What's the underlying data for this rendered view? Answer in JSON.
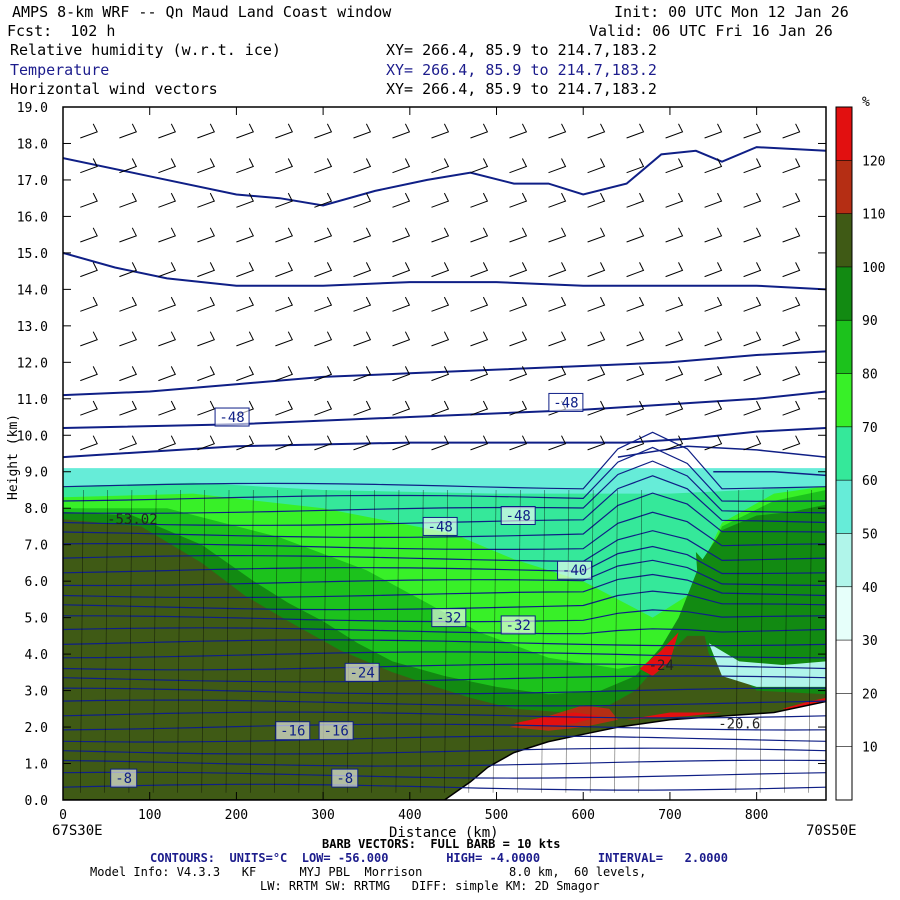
{
  "header": {
    "title_left": "AMPS 8-km WRF -- Qn Maud Land Coast window",
    "init": "Init: 00 UTC Mon 12 Jan 26",
    "fcst": "Fcst:  102 h",
    "valid": "Valid: 06 UTC Fri 16 Jan 26",
    "fields": [
      {
        "name": "Relative humidity (w.r.t. ice)",
        "xy": "XY= 266.4, 85.9 to 214.7,183.2",
        "color": "#000000"
      },
      {
        "name": "Temperature",
        "xy": "XY= 266.4, 85.9 to 214.7,183.2",
        "color": "#1c1c8c"
      },
      {
        "name": "Horizontal wind vectors",
        "xy": "XY= 266.4, 85.9 to 214.7,183.2",
        "color": "#000000"
      }
    ]
  },
  "chart_data": {
    "type": "cross-section",
    "xlabel": "Distance (km)",
    "ylabel": "Height (km)",
    "xlim": [
      0,
      880
    ],
    "ylim": [
      0,
      19
    ],
    "x_ticks": [
      0,
      100,
      200,
      300,
      400,
      500,
      600,
      700,
      800
    ],
    "y_ticks": [
      "0.0",
      "1.0",
      "2.0",
      "3.0",
      "4.0",
      "5.0",
      "6.0",
      "7.0",
      "8.0",
      "9.0",
      "10.0",
      "11.0",
      "12.0",
      "13.0",
      "14.0",
      "15.0",
      "16.0",
      "17.0",
      "18.0",
      "19.0"
    ],
    "start_point": "67S30E",
    "end_point": "70S50E",
    "colorbar": {
      "unit": "%",
      "levels": [
        10,
        20,
        30,
        40,
        50,
        60,
        70,
        80,
        90,
        100,
        110,
        120
      ],
      "colors": [
        "#ffffff",
        "#ffffff",
        "#ffffff",
        "#e6fffa",
        "#b0f5ea",
        "#66ecd8",
        "#35e89a",
        "#38f028",
        "#1cc21c",
        "#128a12",
        "#3f5a15",
        "#b52e14",
        "#e21010"
      ]
    },
    "temperature_labels": [
      {
        "x": 195,
        "y": 10.5,
        "text": "-48"
      },
      {
        "x": 580,
        "y": 10.9,
        "text": "-48"
      },
      {
        "x": 435,
        "y": 7.5,
        "text": "-48"
      },
      {
        "x": 525,
        "y": 7.8,
        "text": "-48"
      },
      {
        "x": 590,
        "y": 6.3,
        "text": "-40"
      },
      {
        "x": 445,
        "y": 5.0,
        "text": "-32"
      },
      {
        "x": 525,
        "y": 4.8,
        "text": "-32"
      },
      {
        "x": 345,
        "y": 3.5,
        "text": "-24"
      },
      {
        "x": 265,
        "y": 1.9,
        "text": "-16"
      },
      {
        "x": 315,
        "y": 1.9,
        "text": "-16"
      },
      {
        "x": 70,
        "y": 0.6,
        "text": "-8"
      },
      {
        "x": 325,
        "y": 0.6,
        "text": "-8"
      }
    ],
    "extrema_labels": [
      {
        "x": 80,
        "y": 7.7,
        "text": "-53.02"
      },
      {
        "x": 690,
        "y": 3.7,
        "text": "-24"
      },
      {
        "x": 780,
        "y": 2.1,
        "text": "-20.6"
      }
    ],
    "terrain_km": [
      [
        0,
        0
      ],
      [
        440,
        0
      ],
      [
        470,
        0.5
      ],
      [
        490,
        0.9
      ],
      [
        520,
        1.3
      ],
      [
        560,
        1.6
      ],
      [
        600,
        1.8
      ],
      [
        640,
        2.0
      ],
      [
        700,
        2.2
      ],
      [
        760,
        2.3
      ],
      [
        820,
        2.4
      ],
      [
        880,
        2.7
      ]
    ]
  },
  "footer": {
    "barb": "BARB VECTORS:  FULL BARB = 10 kts",
    "contours": "CONTOURS:  UNITS=°C  LOW= -56.000        HIGH= -4.0000        INTERVAL=   2.0000",
    "model1": "Model Info: V4.3.3   KF      MYJ PBL  Morrison            8.0 km,  60 levels,",
    "model2": "LW: RRTM SW: RRTMG   DIFF: simple KM: 2D Smagor"
  }
}
